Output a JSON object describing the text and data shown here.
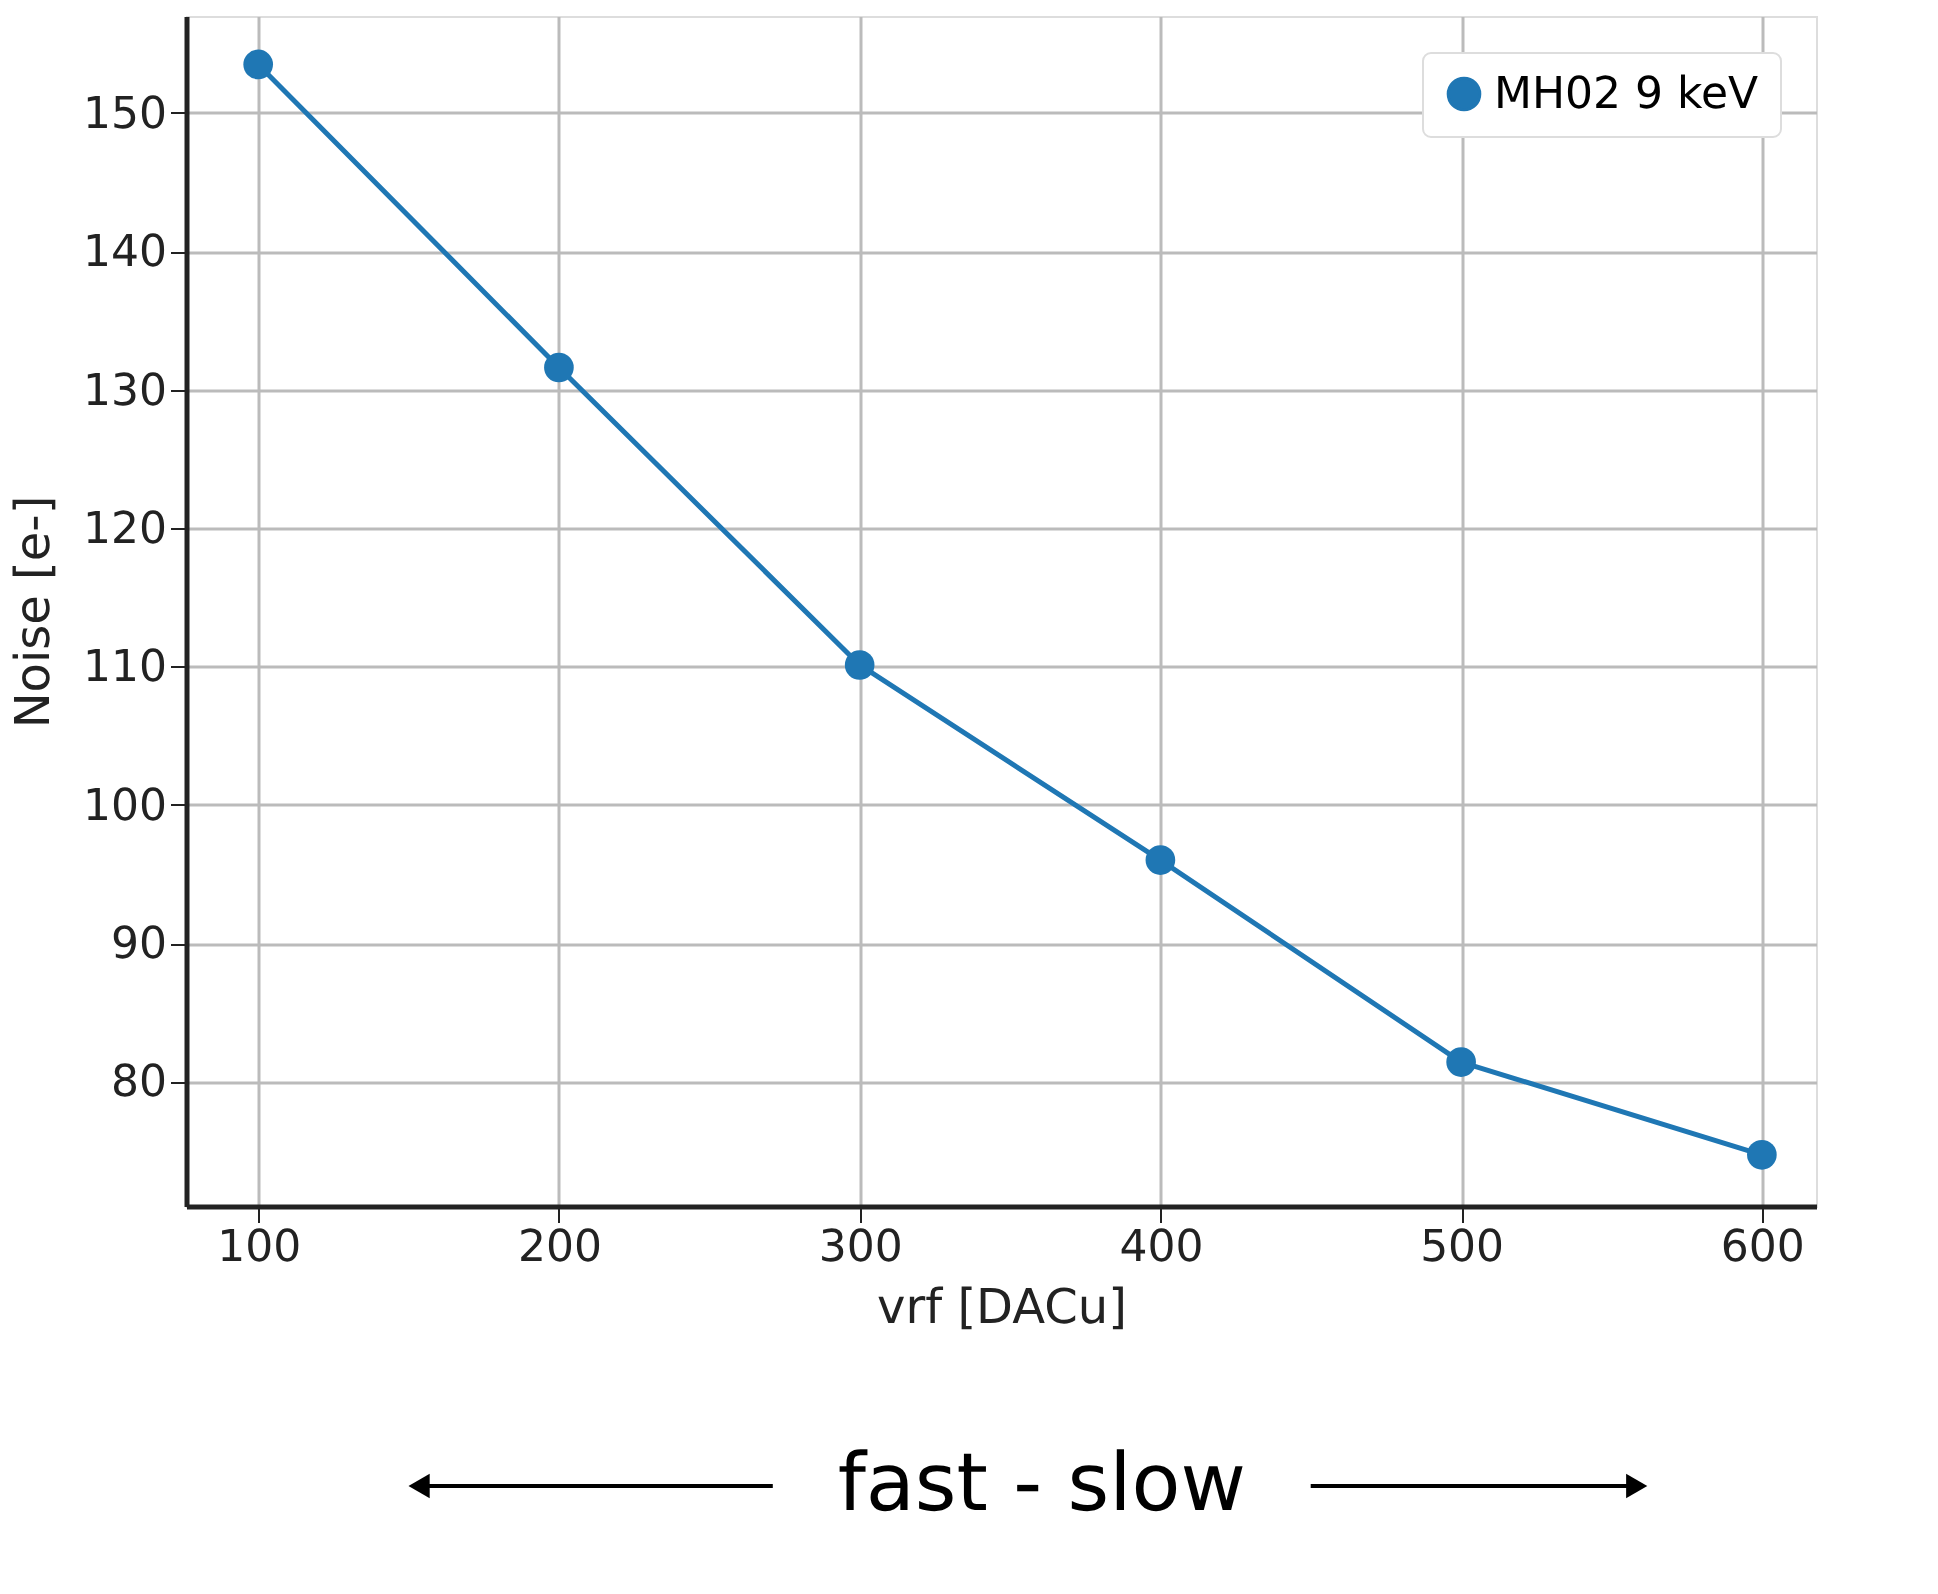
{
  "chart_data": {
    "type": "line",
    "xlabel": "vrf [DACu]",
    "ylabel": "Noise [e-]",
    "x": [
      100,
      200,
      300,
      400,
      500,
      600
    ],
    "series": [
      {
        "name": "MH02 9 keV",
        "color": "#1f77b4",
        "values": [
          153.5,
          131.6,
          110.1,
          96.0,
          81.4,
          74.7
        ]
      }
    ],
    "xlim": [
      76,
      618
    ],
    "xticks": [
      100,
      200,
      300,
      400,
      500,
      600
    ],
    "ylim": [
      71,
      157
    ],
    "yticks": [
      80,
      90,
      100,
      110,
      120,
      130,
      140,
      150
    ],
    "grid": true,
    "legend": "top right",
    "marker": "circle",
    "line_style": "solid",
    "annotations": [
      "fast - slow"
    ]
  }
}
